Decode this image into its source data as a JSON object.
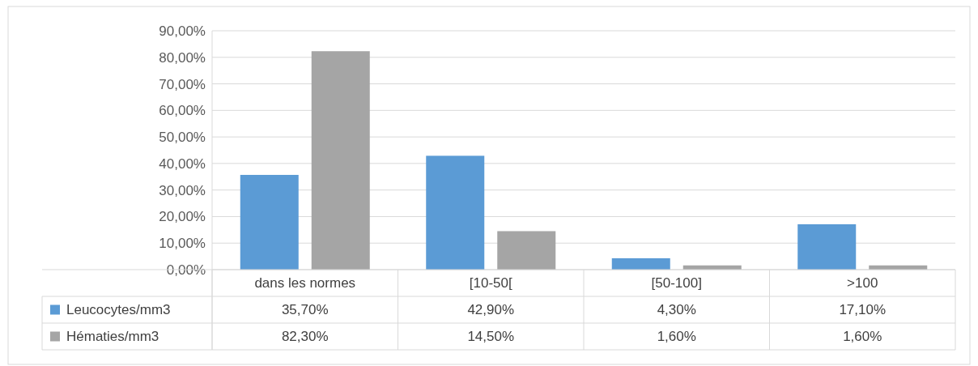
{
  "chart_data": {
    "type": "bar",
    "categories": [
      "dans les normes",
      "[10-50[",
      "[50-100]",
      ">100"
    ],
    "series": [
      {
        "name": "Leucocytes/mm3",
        "color": "#5b9bd5",
        "values": [
          35.7,
          42.9,
          4.3,
          17.1
        ],
        "value_labels": [
          "35,70%",
          "42,90%",
          "4,30%",
          "17,10%"
        ]
      },
      {
        "name": "Hématies/mm3",
        "color": "#a5a5a5",
        "values": [
          82.3,
          14.5,
          1.6,
          1.6
        ],
        "value_labels": [
          "82,30%",
          "14,50%",
          "1,60%",
          "1,60%"
        ]
      }
    ],
    "ylim": [
      0,
      90
    ],
    "yticks": [
      {
        "value": 0,
        "label": "0,00%"
      },
      {
        "value": 10,
        "label": "10,00%"
      },
      {
        "value": 20,
        "label": "20,00%"
      },
      {
        "value": 30,
        "label": "30,00%"
      },
      {
        "value": 40,
        "label": "40,00%"
      },
      {
        "value": 50,
        "label": "50,00%"
      },
      {
        "value": 60,
        "label": "60,00%"
      },
      {
        "value": 70,
        "label": "70,00%"
      },
      {
        "value": 80,
        "label": "80,00%"
      },
      {
        "value": 90,
        "label": "90,00%"
      }
    ],
    "grid": "y",
    "legend": "bottom"
  }
}
